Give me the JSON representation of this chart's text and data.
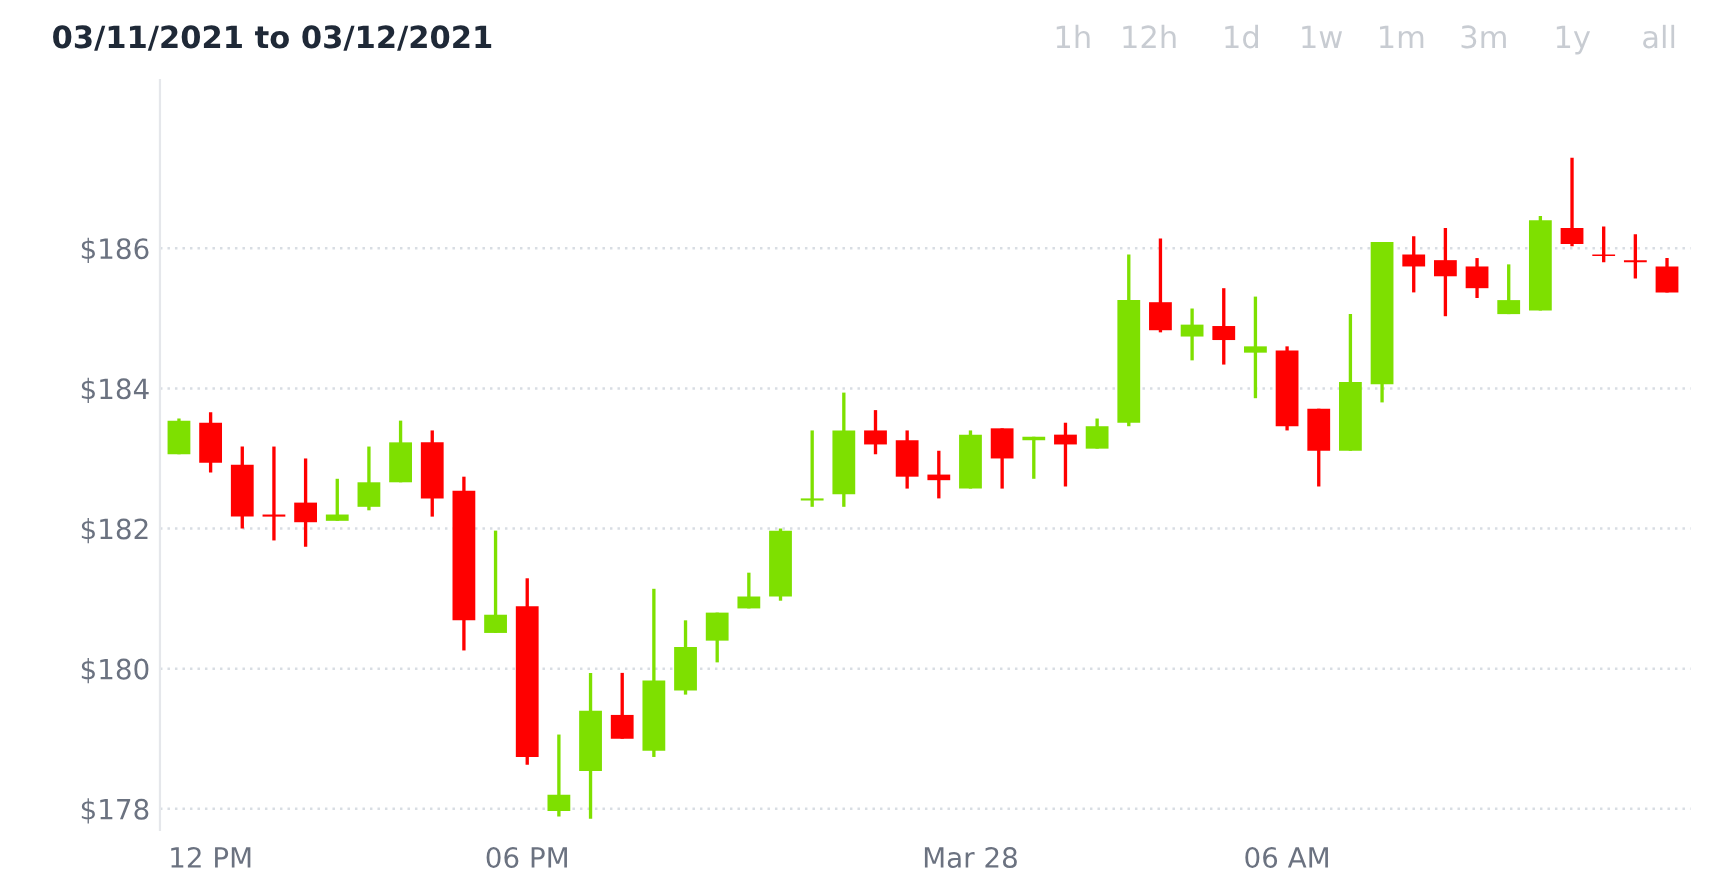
{
  "chart_data": {
    "type": "candlestick",
    "title": "03/11/2021 to 03/12/2021",
    "annotations": [
      "1h",
      "12h",
      "1d",
      "1w",
      "1m",
      "3m",
      "1y",
      "all"
    ],
    "categories": [
      null,
      "12 PM",
      null,
      null,
      null,
      null,
      null,
      null,
      null,
      null,
      null,
      "06 PM",
      null,
      null,
      null,
      null,
      null,
      null,
      null,
      null,
      null,
      null,
      null,
      null,
      null,
      "Mar 28",
      null,
      null,
      null,
      null,
      null,
      null,
      null,
      null,
      null,
      "06 AM",
      null,
      null,
      null,
      null,
      null,
      null,
      null,
      null,
      null,
      null,
      null,
      null
    ],
    "ohlc": [
      [
        183.06,
        183.57,
        183.06,
        183.54
      ],
      [
        183.51,
        183.66,
        182.8,
        182.94
      ],
      [
        182.91,
        183.17,
        182.0,
        182.17
      ],
      [
        182.2,
        183.17,
        181.83,
        182.17
      ],
      [
        182.37,
        183.0,
        181.74,
        182.09
      ],
      [
        182.11,
        182.71,
        182.11,
        182.2
      ],
      [
        182.31,
        183.17,
        182.26,
        182.66
      ],
      [
        182.66,
        183.54,
        182.66,
        183.23
      ],
      [
        183.23,
        183.4,
        182.17,
        182.43
      ],
      [
        182.54,
        182.74,
        180.26,
        180.69
      ],
      [
        180.51,
        181.97,
        180.51,
        180.77
      ],
      [
        180.89,
        181.29,
        178.63,
        178.74
      ],
      [
        177.97,
        179.06,
        177.89,
        178.2
      ],
      [
        178.54,
        179.94,
        177.86,
        179.4
      ],
      [
        179.34,
        179.94,
        179.0,
        179.0
      ],
      [
        178.83,
        181.14,
        178.74,
        179.83
      ],
      [
        179.69,
        180.69,
        179.63,
        180.31
      ],
      [
        180.4,
        180.8,
        180.09,
        180.8
      ],
      [
        180.86,
        181.37,
        180.86,
        181.03
      ],
      [
        181.03,
        182.0,
        180.97,
        181.97
      ],
      [
        182.4,
        183.4,
        182.31,
        182.43
      ],
      [
        182.49,
        183.94,
        182.31,
        183.4
      ],
      [
        183.4,
        183.69,
        183.06,
        183.2
      ],
      [
        183.26,
        183.4,
        182.57,
        182.74
      ],
      [
        182.77,
        183.11,
        182.43,
        182.69
      ],
      [
        182.57,
        183.4,
        182.57,
        183.34
      ],
      [
        183.43,
        183.43,
        182.57,
        183.0
      ],
      [
        183.26,
        183.31,
        182.71,
        183.31
      ],
      [
        183.34,
        183.51,
        182.6,
        183.2
      ],
      [
        183.14,
        183.57,
        183.14,
        183.46
      ],
      [
        183.51,
        185.91,
        183.46,
        185.26
      ],
      [
        185.23,
        186.14,
        184.8,
        184.83
      ],
      [
        184.74,
        185.14,
        184.4,
        184.91
      ],
      [
        184.89,
        185.43,
        184.34,
        184.69
      ],
      [
        184.51,
        185.31,
        183.86,
        184.6
      ],
      [
        184.54,
        184.6,
        183.4,
        183.46
      ],
      [
        183.71,
        183.71,
        182.6,
        183.11
      ],
      [
        183.11,
        185.06,
        183.11,
        184.09
      ],
      [
        184.06,
        186.09,
        183.8,
        186.09
      ],
      [
        185.91,
        186.17,
        185.37,
        185.74
      ],
      [
        185.83,
        186.29,
        185.03,
        185.6
      ],
      [
        185.74,
        185.86,
        185.29,
        185.43
      ],
      [
        185.06,
        185.77,
        185.06,
        185.26
      ],
      [
        185.11,
        186.46,
        185.11,
        186.4
      ],
      [
        186.29,
        187.29,
        186.03,
        186.06
      ],
      [
        185.91,
        186.31,
        185.8,
        185.89
      ],
      [
        185.83,
        186.2,
        185.57,
        185.8
      ],
      [
        185.74,
        185.86,
        185.37,
        185.37
      ]
    ],
    "colors": [
      "#7ee000",
      "#ff0000",
      "#ff0000",
      "#ff0000",
      "#ff0000",
      "#7ee000",
      "#7ee000",
      "#7ee000",
      "#ff0000",
      "#ff0000",
      "#7ee000",
      "#ff0000",
      "#7ee000",
      "#7ee000",
      "#ff0000",
      "#7ee000",
      "#7ee000",
      "#7ee000",
      "#7ee000",
      "#7ee000",
      "#7ee000",
      "#7ee000",
      "#ff0000",
      "#ff0000",
      "#ff0000",
      "#7ee000",
      "#ff0000",
      "#7ee000",
      "#ff0000",
      "#7ee000",
      "#7ee000",
      "#ff0000",
      "#7ee000",
      "#ff0000",
      "#7ee000",
      "#ff0000",
      "#ff0000",
      "#7ee000",
      "#7ee000",
      "#ff0000",
      "#ff0000",
      "#ff0000",
      "#7ee000",
      "#7ee000",
      "#ff0000",
      "#ff0000",
      "#ff0000",
      "#ff0000"
    ],
    "ylim": [
      177.7,
      188.4
    ],
    "yticks": [
      {
        "value": 178,
        "label": "$178"
      },
      {
        "value": 180,
        "label": "$180"
      },
      {
        "value": 182,
        "label": "$182"
      },
      {
        "value": 184,
        "label": "$184"
      },
      {
        "value": 186,
        "label": "$186"
      }
    ],
    "grid": "y"
  }
}
